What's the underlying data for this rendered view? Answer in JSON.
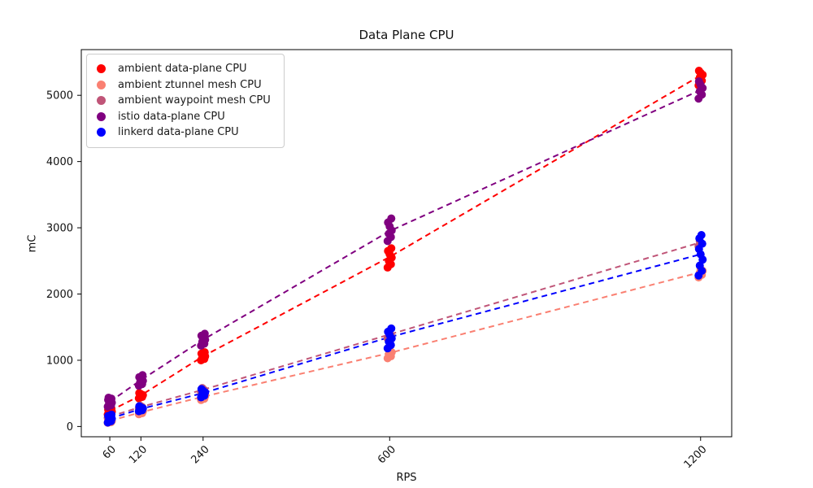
{
  "chart_data": {
    "type": "scatter",
    "title": "Data Plane CPU",
    "xlabel": "RPS",
    "ylabel": "mC",
    "x_ticks": [
      60,
      120,
      240,
      600,
      1200
    ],
    "y_ticks": [
      0,
      1000,
      2000,
      3000,
      4000,
      5000
    ],
    "xlim": [
      5,
      1260
    ],
    "ylim": [
      -155,
      5690
    ],
    "grid": false,
    "legend_position": "upper left",
    "background": "#ffffff",
    "axis_color": "#000000",
    "marker_radius": 5,
    "line_style": "dashed",
    "series": [
      {
        "key": "ambient",
        "name": "ambient data-plane CPU",
        "color": "#ff0000",
        "points": {
          "60": [
            180,
            195,
            210,
            225,
            240,
            255,
            270,
            285
          ],
          "120": [
            425,
            445,
            460,
            475,
            490,
            505
          ],
          "240": [
            1000,
            1020,
            1040,
            1060,
            1080,
            1100,
            1120
          ],
          "600": [
            2400,
            2450,
            2500,
            2550,
            2600,
            2650,
            2690
          ],
          "1200": [
            5150,
            5220,
            5270,
            5310,
            5340,
            5370
          ]
        },
        "trend": [
          [
            60,
            235
          ],
          [
            120,
            470
          ],
          [
            240,
            1060
          ],
          [
            600,
            2560
          ],
          [
            1200,
            5300
          ]
        ]
      },
      {
        "key": "ztunnel",
        "name": "ambient ztunnel mesh CPU",
        "color": "#fa8072",
        "points": {
          "60": [
            55,
            65,
            75,
            85,
            95,
            105
          ],
          "120": [
            185,
            200,
            215,
            230,
            245
          ],
          "240": [
            400,
            420,
            440,
            460,
            480
          ],
          "600": [
            1030,
            1060,
            1090,
            1120,
            1150,
            1180
          ],
          "1200": [
            2250,
            2290,
            2320,
            2350,
            2380
          ]
        },
        "trend": [
          [
            60,
            85
          ],
          [
            120,
            215
          ],
          [
            240,
            450
          ],
          [
            600,
            1110
          ],
          [
            1200,
            2330
          ]
        ]
      },
      {
        "key": "waypoint",
        "name": "ambient waypoint mesh CPU",
        "color": "#c05578",
        "points": {
          "60": [
            130,
            145,
            160
          ],
          "120": [
            275,
            295,
            315
          ],
          "240": [
            520,
            550,
            580
          ],
          "600": [
            1330,
            1380,
            1420
          ],
          "1200": [
            2720,
            2760,
            2800
          ]
        },
        "trend": [
          [
            60,
            150
          ],
          [
            120,
            295
          ],
          [
            240,
            555
          ],
          [
            600,
            1390
          ],
          [
            1200,
            2780
          ]
        ]
      },
      {
        "key": "istio",
        "name": "istio data-plane CPU",
        "color": "#800080",
        "points": {
          "60": [
            300,
            320,
            340,
            360,
            380,
            400,
            420,
            435
          ],
          "120": [
            615,
            640,
            665,
            690,
            715,
            745,
            775
          ],
          "240": [
            1220,
            1250,
            1280,
            1310,
            1340,
            1370,
            1400
          ],
          "600": [
            2800,
            2860,
            2910,
            2960,
            3020,
            3080,
            3140
          ],
          "1200": [
            4950,
            5010,
            5060,
            5110,
            5160,
            5210
          ]
        },
        "trend": [
          [
            60,
            375
          ],
          [
            120,
            700
          ],
          [
            240,
            1310
          ],
          [
            600,
            2950
          ],
          [
            1200,
            5080
          ]
        ]
      },
      {
        "key": "linkerd",
        "name": "linkerd data-plane CPU",
        "color": "#0000ff",
        "points": {
          "60": [
            60,
            80,
            100,
            120,
            140,
            160,
            180
          ],
          "120": [
            230,
            245,
            260,
            275,
            290,
            305
          ],
          "240": [
            440,
            465,
            490,
            515,
            540,
            565
          ],
          "600": [
            1180,
            1230,
            1280,
            1330,
            1380,
            1430,
            1480
          ],
          "1200": [
            2280,
            2350,
            2430,
            2520,
            2600,
            2680,
            2760,
            2840,
            2890
          ]
        },
        "trend": [
          [
            60,
            120
          ],
          [
            120,
            265
          ],
          [
            240,
            505
          ],
          [
            600,
            1350
          ],
          [
            1200,
            2600
          ]
        ]
      }
    ]
  }
}
